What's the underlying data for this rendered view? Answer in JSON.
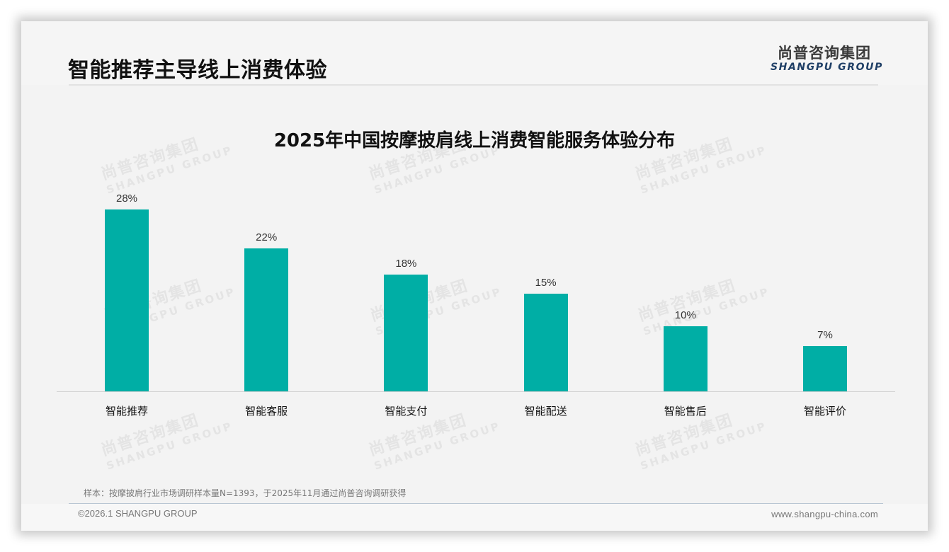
{
  "header": {
    "title": "智能推荐主导线上消费体验",
    "logo_cn": "尚普咨询集团",
    "logo_en": "SHANGPU GROUP"
  },
  "watermark": {
    "cn": "尚普咨询集团",
    "en": "SHANGPU GROUP"
  },
  "colors": {
    "bar": "#00aea5",
    "background": "#f3f3f3",
    "logo_en": "#1f3f66"
  },
  "chart_data": {
    "type": "bar",
    "title": "2025年中国按摩披肩线上消费智能服务体验分布",
    "categories": [
      "智能推荐",
      "智能客服",
      "智能支付",
      "智能配送",
      "智能售后",
      "智能评价"
    ],
    "values": [
      28,
      22,
      18,
      15,
      10,
      7
    ],
    "value_labels": [
      "28%",
      "22%",
      "18%",
      "15%",
      "10%",
      "7%"
    ],
    "xlabel": "",
    "ylabel": "",
    "unit": "%",
    "ylim": [
      0,
      30
    ],
    "grid": false,
    "legend": "none",
    "data_labels": true
  },
  "footer": {
    "note": "样本：按摩披肩行业市场调研样本量N=1393，于2025年11月通过尚普咨询调研获得",
    "copyright": "©2026.1 SHANGPU GROUP",
    "website": "www.shangpu-china.com"
  }
}
